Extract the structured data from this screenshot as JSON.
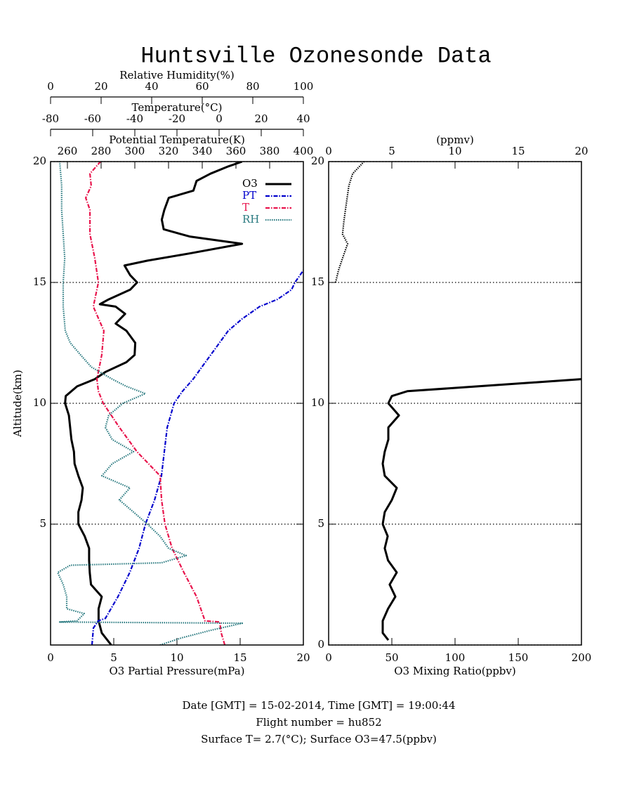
{
  "title": "Huntsville Ozonesonde Data",
  "footer": [
    "Date [GMT] = 15-02-2014,  Time [GMT] = 19:00:44",
    "Flight number = hu852",
    "Surface T= 2.7(°C); Surface O3=47.5(ppbv)"
  ],
  "chart_data": [
    {
      "type": "line",
      "ylabel": "Altitude(km)",
      "ylim": [
        0,
        20
      ],
      "yticks": [
        5,
        10,
        15,
        20
      ],
      "grid": true,
      "legend": "upper right",
      "xaxes": [
        {
          "position": "bottom",
          "label": "O3 Partial Pressure(mPa)",
          "lim": [
            0,
            20
          ],
          "ticks": [
            0,
            5,
            10,
            15,
            20
          ]
        },
        {
          "position": "top",
          "label": "Potential Temperature(K)",
          "lim": [
            250,
            400
          ],
          "ticks": [
            260,
            280,
            300,
            320,
            340,
            360,
            380,
            400
          ]
        },
        {
          "position": "top",
          "label": "Temperature(°C)",
          "lim": [
            -80,
            40
          ],
          "ticks": [
            -80,
            -60,
            -40,
            -20,
            0,
            20,
            40
          ]
        },
        {
          "position": "top",
          "label": "Relative Humidity(%)",
          "lim": [
            0,
            100
          ],
          "ticks": [
            0,
            20,
            40,
            60,
            80,
            100
          ]
        }
      ],
      "series": [
        {
          "name": "O3",
          "color": "#000000",
          "linestyle": "solid",
          "axis": 0,
          "y": [
            0,
            0.5,
            1.0,
            1.5,
            2,
            2.5,
            3,
            3.5,
            4,
            4.5,
            5,
            5.5,
            6,
            6.5,
            7,
            7.5,
            8,
            8.5,
            9,
            9.5,
            10,
            10.3,
            10.7,
            11,
            11.3,
            11.7,
            12,
            12.5,
            13,
            13.3,
            13.7,
            14,
            14.1,
            14.3,
            14.7,
            15,
            15.3,
            15.7,
            15.9,
            16.2,
            16.6,
            16.9,
            17.2,
            17.6,
            18,
            18.5,
            18.8,
            19.2,
            19.5,
            19.8,
            20
          ],
          "values": [
            4.8,
            4.05,
            3.8,
            3.8,
            4.05,
            3.2,
            3.1,
            3.05,
            3.05,
            2.7,
            2.2,
            2.2,
            2.45,
            2.55,
            2.2,
            1.9,
            1.85,
            1.65,
            1.55,
            1.45,
            1.15,
            1.2,
            2.1,
            3.5,
            4.35,
            6.0,
            6.65,
            6.7,
            6.0,
            5.15,
            5.9,
            5.15,
            3.9,
            4.6,
            6.3,
            6.85,
            6.3,
            5.85,
            7.65,
            11.0,
            15.15,
            11.0,
            8.95,
            8.8,
            9.0,
            9.35,
            11.3,
            11.55,
            12.65,
            14.05,
            15.15
          ]
        },
        {
          "name": "PT",
          "color": "#0000cc",
          "linestyle": "dashdot",
          "axis": 1,
          "y": [
            0,
            0.7,
            1.0,
            1.1,
            2,
            3,
            4,
            5,
            6,
            7,
            8,
            9,
            10,
            10.5,
            11,
            12,
            13,
            13.5,
            14,
            14.3,
            14.7,
            15,
            15.5
          ],
          "values": [
            274.6,
            275.4,
            278.3,
            282.5,
            290,
            297,
            302.5,
            306.3,
            311.7,
            315.8,
            317.5,
            319.2,
            323.3,
            328.3,
            334.6,
            345,
            355.4,
            363.8,
            374,
            384.6,
            393,
            395,
            400
          ]
        },
        {
          "name": "T",
          "color": "#e8144c",
          "linestyle": "dashdot",
          "axis": 2,
          "y": [
            0,
            0.5,
            0.95,
            1.0,
            2,
            3,
            4,
            5,
            6,
            7,
            8,
            9,
            10,
            10.5,
            11,
            12,
            13,
            14,
            15,
            16,
            17,
            18,
            18.5,
            19,
            19.5,
            20
          ],
          "values": [
            2.7,
            1,
            0.3,
            -6.7,
            -10.7,
            -16.7,
            -22.3,
            -25.7,
            -27.3,
            -28,
            -39,
            -47.3,
            -55,
            -57.3,
            -58,
            -55.7,
            -54.7,
            -59.7,
            -57.3,
            -59,
            -61.3,
            -61.3,
            -63.3,
            -60.7,
            -61.3,
            -56.3
          ]
        },
        {
          "name": "RH",
          "color": "#2a7a80",
          "linestyle": "dotted",
          "axis": 3,
          "y": [
            0,
            0.3,
            0.6,
            0.9,
            0.95,
            1.0,
            1.3,
            1.5,
            2,
            2.5,
            3,
            3.3,
            3.4,
            3.7,
            4,
            4.5,
            5,
            5.5,
            6,
            6.5,
            7,
            7.5,
            8,
            8.5,
            9,
            9.5,
            10,
            10.4,
            10.7,
            11,
            11.5,
            12,
            12.5,
            13,
            14,
            15,
            16,
            17,
            18,
            19,
            20
          ],
          "values": [
            43.3,
            52,
            63,
            75.8,
            3.6,
            10.5,
            13.3,
            6.4,
            6.4,
            5,
            2.8,
            7.8,
            43.9,
            53.6,
            46.7,
            43.3,
            38.3,
            32.8,
            27.2,
            31.4,
            20.3,
            24.4,
            32.8,
            24.4,
            21.7,
            23,
            28.6,
            37.5,
            30,
            24.4,
            16.1,
            11.9,
            7.8,
            5.8,
            5,
            5,
            5.6,
            5,
            4.4,
            4.4,
            3.6
          ]
        }
      ]
    },
    {
      "type": "line",
      "ylim": [
        0,
        20
      ],
      "yticks": [
        0,
        5,
        10,
        15,
        20
      ],
      "grid": true,
      "xaxes": [
        {
          "position": "bottom",
          "label": "O3 Mixing Ratio(ppbv)",
          "lim": [
            0,
            200
          ],
          "ticks": [
            0,
            50,
            100,
            150,
            200
          ]
        },
        {
          "position": "top",
          "label": "(ppmv)",
          "lim": [
            0,
            20
          ],
          "ticks": [
            0,
            5,
            10,
            15,
            20
          ]
        }
      ],
      "series": [
        {
          "color": "#000000",
          "linestyle": "solid",
          "axis": 0,
          "y": [
            0.2,
            0.5,
            1,
            1.5,
            2,
            2.5,
            3,
            3.5,
            4,
            4.5,
            5,
            5.5,
            6,
            6.5,
            7,
            7.5,
            8,
            8.5,
            9,
            9.5,
            10,
            10.3,
            10.5,
            10.7,
            11
          ],
          "values": [
            47.2,
            42.8,
            42.8,
            47,
            52.8,
            48.3,
            53.9,
            47,
            44.4,
            46.7,
            42.8,
            44.4,
            50,
            53.9,
            44.4,
            42.8,
            44.4,
            47.2,
            47.2,
            55.6,
            47.2,
            50,
            62.2,
            117.8,
            200
          ]
        },
        {
          "color": "#000000",
          "linestyle": "dotted",
          "axis": 1,
          "y": [
            15,
            15.5,
            16,
            16.6,
            17,
            17.5,
            18,
            19,
            19.5,
            20
          ],
          "values": [
            0.55,
            0.78,
            1.1,
            1.5,
            1.1,
            1.2,
            1.33,
            1.6,
            1.9,
            2.8
          ]
        }
      ]
    }
  ]
}
